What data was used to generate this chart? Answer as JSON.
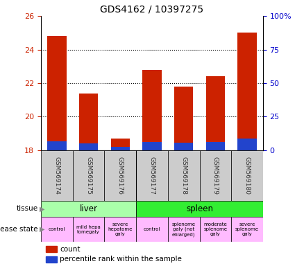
{
  "title": "GDS4162 / 10397275",
  "samples": [
    "GSM569174",
    "GSM569175",
    "GSM569176",
    "GSM569177",
    "GSM569178",
    "GSM569179",
    "GSM569180"
  ],
  "count_values": [
    24.8,
    21.4,
    18.7,
    22.8,
    21.8,
    22.4,
    25.0
  ],
  "percentile_values": [
    18.55,
    18.4,
    18.2,
    18.5,
    18.45,
    18.5,
    18.7
  ],
  "bar_bottom": 18.0,
  "ylim_left": [
    18,
    26
  ],
  "ylim_right": [
    0,
    100
  ],
  "yticks_left": [
    18,
    20,
    22,
    24,
    26
  ],
  "yticks_right": [
    0,
    25,
    50,
    75,
    100
  ],
  "ytick_labels_right": [
    "0",
    "25",
    "50",
    "75",
    "100%"
  ],
  "count_color": "#cc2200",
  "percentile_color": "#2244cc",
  "tissue_groups": [
    {
      "label": "liver",
      "start": 0,
      "end": 3,
      "color": "#aaffaa"
    },
    {
      "label": "spleen",
      "start": 3,
      "end": 7,
      "color": "#33ee33"
    }
  ],
  "disease_groups": [
    {
      "label": "control",
      "start": 0,
      "end": 1,
      "color": "#ffbbff"
    },
    {
      "label": "mild hepa\ntomegaly",
      "start": 1,
      "end": 2,
      "color": "#ffbbff"
    },
    {
      "label": "severe\nhepatome\ngaly",
      "start": 2,
      "end": 3,
      "color": "#ffbbff"
    },
    {
      "label": "control",
      "start": 3,
      "end": 4,
      "color": "#ffbbff"
    },
    {
      "label": "splenome\ngaly (not\nenlarged)",
      "start": 4,
      "end": 5,
      "color": "#ffbbff"
    },
    {
      "label": "moderate\nsplenome\ngaly",
      "start": 5,
      "end": 6,
      "color": "#ffbbff"
    },
    {
      "label": "severe\nsplenome\ngaly",
      "start": 6,
      "end": 7,
      "color": "#ffbbff"
    }
  ],
  "sample_label_color": "#333333",
  "tick_label_color_left": "#cc2200",
  "tick_label_color_right": "#0000cc",
  "grid_color": "#000000",
  "legend_count_label": "count",
  "legend_percentile_label": "percentile rank within the sample",
  "tissue_label": "tissue",
  "disease_state_label": "disease state",
  "bar_width": 0.6
}
